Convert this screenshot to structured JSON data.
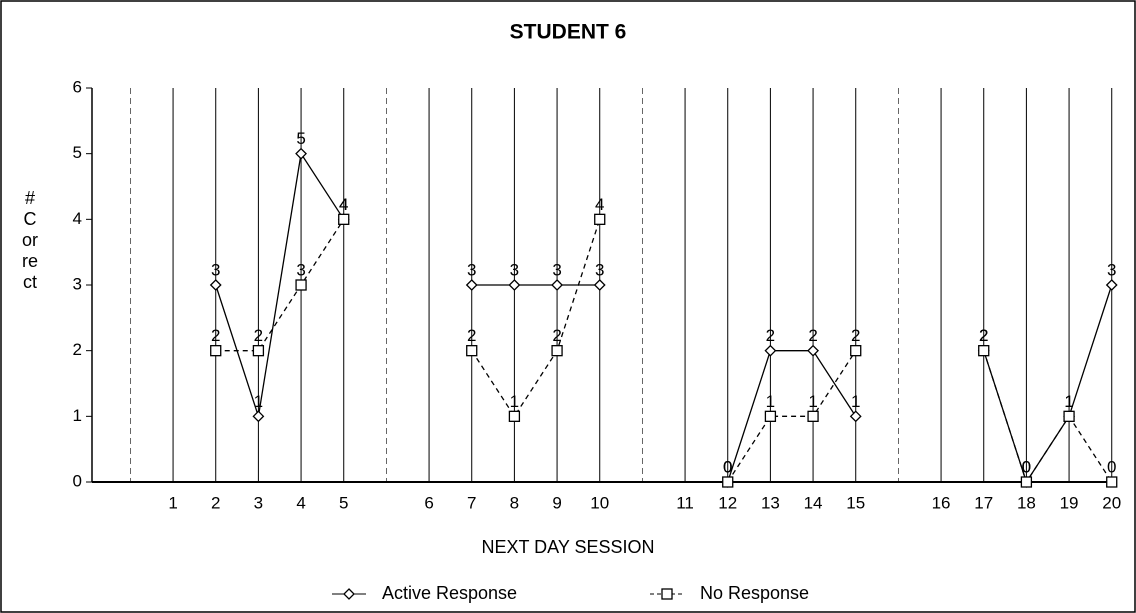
{
  "chart_data": {
    "type": "line",
    "title": "STUDENT 6",
    "x_label": "NEXT DAY SESSION",
    "y_label": "# Correct",
    "categories": [
      null,
      "1",
      "2",
      "3",
      "4",
      "5",
      null,
      "6",
      "7",
      "8",
      "9",
      "10",
      null,
      "11",
      "12",
      "13",
      "14",
      "15",
      null,
      "16",
      "17",
      "18",
      "19",
      "20"
    ],
    "series": [
      {
        "name": "Active Response",
        "color": "#000000",
        "marker": "diamond",
        "dash": false,
        "values": [
          null,
          null,
          3,
          1,
          5,
          4,
          null,
          null,
          3,
          3,
          3,
          3,
          null,
          null,
          0,
          2,
          2,
          1,
          null,
          null,
          2,
          0,
          1,
          3
        ]
      },
      {
        "name": "No Response",
        "color": "#000000",
        "marker": "square",
        "dash": true,
        "values": [
          null,
          null,
          2,
          2,
          3,
          4,
          null,
          null,
          2,
          1,
          2,
          4,
          null,
          null,
          0,
          1,
          1,
          2,
          null,
          null,
          2,
          0,
          1,
          0
        ]
      }
    ],
    "ylim": [
      0,
      6
    ],
    "yticks": [
      0,
      1,
      2,
      3,
      4,
      5,
      6
    ],
    "legend": "bottom"
  }
}
